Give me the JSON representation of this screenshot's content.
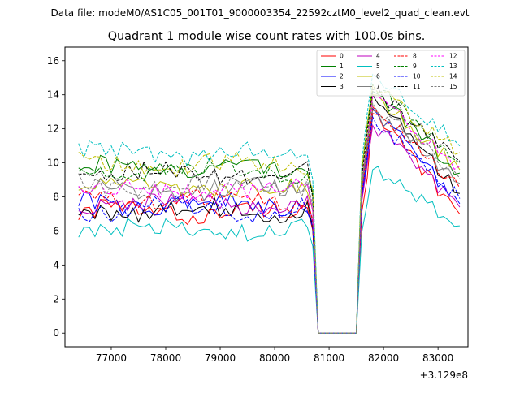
{
  "chart_data": {
    "type": "line",
    "suptitle": "Data file: modeM0/AS1C05_001T01_9000003354_22592cztM0_level2_quad_clean.evt",
    "title": "Quadrant 1 module wise count rates with 100.0s bins.",
    "xlabel": "",
    "ylabel": "",
    "x_offset_label": "+3.129e8",
    "xlim": [
      76150,
      83550
    ],
    "ylim": [
      -0.8,
      16.8
    ],
    "xticks": [
      77000,
      78000,
      79000,
      80000,
      81000,
      82000,
      83000
    ],
    "xtick_labels": [
      "77000",
      "78000",
      "79000",
      "80000",
      "81000",
      "82000",
      "83000"
    ],
    "yticks": [
      0,
      2,
      4,
      6,
      8,
      10,
      12,
      14,
      16
    ],
    "ytick_labels": [
      "0",
      "2",
      "4",
      "6",
      "8",
      "10",
      "12",
      "14",
      "16"
    ],
    "grid": false,
    "legend_position": "top-right",
    "x_series": {
      "start": 76400,
      "step": 100,
      "count": 71
    },
    "gap": {
      "drop_from": 80700,
      "zero_from": 80800,
      "zero_to": 81500,
      "rise_at": 81600
    },
    "series": [
      {
        "name": "0",
        "color": "#ff0000",
        "dash": "solid",
        "level1": 7.1,
        "level2": 9.1,
        "peak": 12.9,
        "last": 7.0
      },
      {
        "name": "1",
        "color": "#008000",
        "dash": "solid",
        "level1": 9.7,
        "level2": 12.2,
        "peak": 14.2,
        "last": 9.4
      },
      {
        "name": "2",
        "color": "#0000ff",
        "dash": "solid",
        "level1": 7.6,
        "level2": 10.2,
        "peak": 13.2,
        "last": 7.6
      },
      {
        "name": "3",
        "color": "#000000",
        "dash": "solid",
        "level1": 7.2,
        "level2": 11.1,
        "peak": 14.0,
        "last": 8.2
      },
      {
        "name": "4",
        "color": "#bf00bf",
        "dash": "solid",
        "level1": 7.6,
        "level2": 9.9,
        "peak": 12.2,
        "last": 7.4
      },
      {
        "name": "5",
        "color": "#00bfbf",
        "dash": "solid",
        "level1": 6.0,
        "level2": 7.6,
        "peak": 9.6,
        "last": 6.3
      },
      {
        "name": "6",
        "color": "#bfbf00",
        "dash": "solid",
        "level1": 8.5,
        "level2": 11.4,
        "peak": 14.0,
        "last": 9.6
      },
      {
        "name": "7",
        "color": "#808080",
        "dash": "solid",
        "level1": 8.4,
        "level2": 10.8,
        "peak": 13.1,
        "last": 8.8
      },
      {
        "name": "8",
        "color": "#ff0000",
        "dash": "dashed",
        "level1": 7.8,
        "level2": 10.6,
        "peak": 13.3,
        "last": 8.5
      },
      {
        "name": "9",
        "color": "#008000",
        "dash": "dashed",
        "level1": 9.5,
        "level2": 12.2,
        "peak": 14.6,
        "last": 10.0
      },
      {
        "name": "10",
        "color": "#0000ff",
        "dash": "dashed",
        "level1": 7.3,
        "level2": 10.4,
        "peak": 12.7,
        "last": 7.9
      },
      {
        "name": "11",
        "color": "#000000",
        "dash": "dashed",
        "level1": 9.3,
        "level2": 11.8,
        "peak": 14.3,
        "last": 10.1
      },
      {
        "name": "12",
        "color": "#ff00ff",
        "dash": "dashed",
        "level1": 8.4,
        "level2": 11.3,
        "peak": 13.9,
        "last": 9.8
      },
      {
        "name": "13",
        "color": "#00bfbf",
        "dash": "dashed",
        "level1": 10.6,
        "level2": 12.9,
        "peak": 15.2,
        "last": 11.0
      },
      {
        "name": "14",
        "color": "#bfbf00",
        "dash": "dashed",
        "level1": 9.9,
        "level2": 12.3,
        "peak": 14.5,
        "last": 10.6
      },
      {
        "name": "15",
        "color": "#808080",
        "dash": "dashed",
        "level1": 8.7,
        "level2": 11.2,
        "peak": 13.5,
        "last": 9.1
      }
    ]
  }
}
